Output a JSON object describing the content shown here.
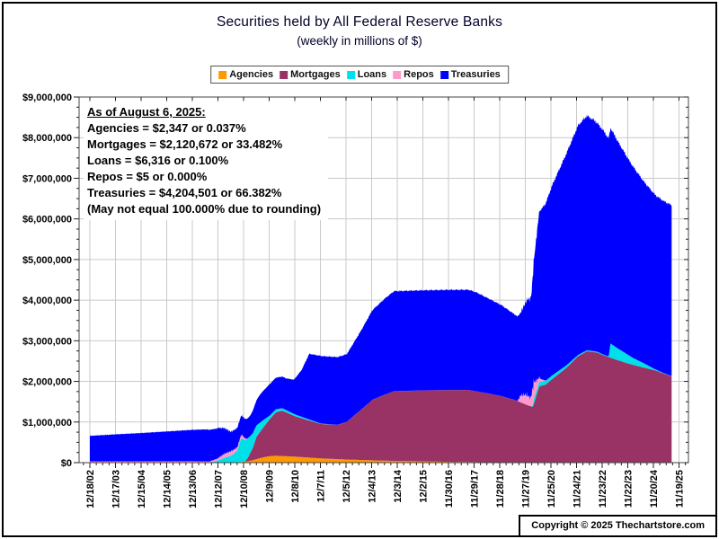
{
  "header": {
    "title": "Securities held by All Federal Reserve Banks",
    "subtitle": "(weekly in millions of $)"
  },
  "annotation": {
    "title": "As of August 6, 2025:",
    "lines": [
      "Agencies = $2,347 or 0.037%",
      "Mortgages = $2,120,672 or 33.482%",
      "Loans = $6,316 or 0.100%",
      "Repos = $5 or 0.000%",
      "Treasuries = $4,204,501 or 66.382%",
      "(May not equal 100.000% due to rounding)"
    ]
  },
  "footer": {
    "copyright": "Copyright © 2025 Thechartstore.com"
  },
  "chart_data": {
    "type": "area",
    "stacked": true,
    "title": "Securities held by All Federal Reserve Banks",
    "subtitle": "(weekly in millions of $)",
    "units": "millions of $",
    "frequency": "weekly",
    "legend_position": "top-center",
    "grid": true,
    "ylim": [
      0,
      9000000
    ],
    "y_tick_interval": 1000000,
    "y_ticks": [
      "$0",
      "$1,000,000",
      "$2,000,000",
      "$3,000,000",
      "$4,000,000",
      "$5,000,000",
      "$6,000,000",
      "$7,000,000",
      "$8,000,000",
      "$9,000,000"
    ],
    "x_ticks": [
      "12/18/02",
      "12/17/03",
      "12/15/04",
      "12/14/05",
      "12/13/06",
      "12/12/07",
      "12/10/08",
      "12/9/09",
      "12/8/10",
      "12/7/11",
      "12/5/12",
      "12/4/13",
      "12/3/14",
      "12/2/15",
      "11/30/16",
      "11/29/17",
      "11/28/18",
      "11/27/19",
      "11/25/20",
      "11/24/21",
      "11/23/22",
      "11/22/23",
      "11/20/24",
      "11/19/25"
    ],
    "x_start_year_value": 2002.963,
    "x_tick_interval_years": 0.99661,
    "data_end_year_value": 2025.6,
    "as_of": {
      "date": "August 6, 2025",
      "Agencies": 2347,
      "Mortgages": 2120672,
      "Loans": 6316,
      "Repos": 5,
      "Treasuries": 4204501,
      "pct": {
        "Agencies": 0.037,
        "Mortgages": 33.482,
        "Loans": 0.1,
        "Repos": 0.0,
        "Treasuries": 66.382
      }
    },
    "colors": {
      "grid": "#c9c9c9",
      "plot_border": "#444444",
      "tick": "#222222",
      "title_text": "#000028"
    },
    "series": [
      {
        "name": "Agencies",
        "color": "#FF9900",
        "keypoints": [
          [
            2002.963,
            0
          ],
          [
            2008.6,
            0
          ],
          [
            2008.75,
            14000
          ],
          [
            2008.96,
            20000
          ],
          [
            2009.3,
            60000
          ],
          [
            2009.7,
            130000
          ],
          [
            2009.96,
            160000
          ],
          [
            2010.2,
            169000
          ],
          [
            2010.96,
            147000
          ],
          [
            2011.96,
            104000
          ],
          [
            2012.96,
            76000
          ],
          [
            2013.96,
            57000
          ],
          [
            2014.96,
            39000
          ],
          [
            2015.96,
            32000
          ],
          [
            2016.96,
            19000
          ],
          [
            2017.96,
            13000
          ],
          [
            2018.96,
            2400
          ],
          [
            2025.6,
            2347
          ]
        ]
      },
      {
        "name": "Mortgages",
        "color": "#993366",
        "keypoints": [
          [
            2002.963,
            0
          ],
          [
            2008.99,
            0
          ],
          [
            2009.1,
            70000
          ],
          [
            2009.3,
            300000
          ],
          [
            2009.45,
            553000
          ],
          [
            2009.96,
            908000
          ],
          [
            2010.2,
            1070000
          ],
          [
            2010.45,
            1118000
          ],
          [
            2010.96,
            992000
          ],
          [
            2011.45,
            920000
          ],
          [
            2011.96,
            848000
          ],
          [
            2012.6,
            845000
          ],
          [
            2012.96,
            927000
          ],
          [
            2013.45,
            1200000
          ],
          [
            2013.96,
            1490000
          ],
          [
            2014.45,
            1630000
          ],
          [
            2014.8,
            1717000
          ],
          [
            2015.96,
            1747000
          ],
          [
            2016.96,
            1770000
          ],
          [
            2017.7,
            1775000
          ],
          [
            2018.96,
            1640000
          ],
          [
            2019.5,
            1540000
          ],
          [
            2019.96,
            1420000
          ],
          [
            2020.2,
            1370000
          ],
          [
            2020.45,
            1880000
          ],
          [
            2020.7,
            1920000
          ],
          [
            2020.96,
            2060000
          ],
          [
            2021.5,
            2330000
          ],
          [
            2021.96,
            2620000
          ],
          [
            2022.3,
            2740000
          ],
          [
            2022.7,
            2710000
          ],
          [
            2022.96,
            2640000
          ],
          [
            2023.5,
            2520000
          ],
          [
            2023.96,
            2430000
          ],
          [
            2024.5,
            2340000
          ],
          [
            2024.96,
            2270000
          ],
          [
            2025.6,
            2120672
          ]
        ]
      },
      {
        "name": "Loans",
        "color": "#00E0E8",
        "keypoints": [
          [
            2002.963,
            200
          ],
          [
            2007.6,
            300
          ],
          [
            2007.9,
            45000
          ],
          [
            2008.2,
            120000
          ],
          [
            2008.45,
            170000
          ],
          [
            2008.7,
            290000
          ],
          [
            2008.85,
            590000
          ],
          [
            2008.96,
            550000
          ],
          [
            2009.2,
            420000
          ],
          [
            2009.45,
            280000
          ],
          [
            2009.96,
            90000
          ],
          [
            2010.45,
            60000
          ],
          [
            2010.96,
            45000
          ],
          [
            2011.96,
            10000
          ],
          [
            2012.5,
            2000
          ],
          [
            2019.96,
            100
          ],
          [
            2020.15,
            2000
          ],
          [
            2020.25,
            130000
          ],
          [
            2020.5,
            100000
          ],
          [
            2020.96,
            90000
          ],
          [
            2021.5,
            60000
          ],
          [
            2021.96,
            30000
          ],
          [
            2022.96,
            15000
          ],
          [
            2023.15,
            15000
          ],
          [
            2023.22,
            350000
          ],
          [
            2023.5,
            290000
          ],
          [
            2023.96,
            200000
          ],
          [
            2024.1,
            167000
          ],
          [
            2024.5,
            110000
          ],
          [
            2024.96,
            25000
          ],
          [
            2025.3,
            10000
          ],
          [
            2025.6,
            6316
          ]
        ]
      },
      {
        "name": "Repos",
        "color": "#FF99CC",
        "keypoints": [
          [
            2002.963,
            30000
          ],
          [
            2006.96,
            32000
          ],
          [
            2007.6,
            28000
          ],
          [
            2007.9,
            46000
          ],
          [
            2008.2,
            100000
          ],
          [
            2008.45,
            110000
          ],
          [
            2008.7,
            80000
          ],
          [
            2008.9,
            80000
          ],
          [
            2009.05,
            20000
          ],
          [
            2009.2,
            0
          ],
          [
            2019.6,
            0
          ],
          [
            2019.73,
            180000
          ],
          [
            2019.96,
            250000
          ],
          [
            2020.1,
            190000
          ],
          [
            2020.22,
            440000
          ],
          [
            2020.35,
            220000
          ],
          [
            2020.5,
            70000
          ],
          [
            2020.7,
            0
          ],
          [
            2025.6,
            5
          ]
        ]
      },
      {
        "name": "Treasuries",
        "color": "#0000FF",
        "keypoints": [
          [
            2002.963,
            629000
          ],
          [
            2003.96,
            666000
          ],
          [
            2004.96,
            698000
          ],
          [
            2005.96,
            736000
          ],
          [
            2006.96,
            775000
          ],
          [
            2007.5,
            790000
          ],
          [
            2007.96,
            740000
          ],
          [
            2008.2,
            630000
          ],
          [
            2008.45,
            479000
          ],
          [
            2008.96,
            475000
          ],
          [
            2009.2,
            505000
          ],
          [
            2009.6,
            695000
          ],
          [
            2009.96,
            776000
          ],
          [
            2010.6,
            779000
          ],
          [
            2010.9,
            840000
          ],
          [
            2011.2,
            1150000
          ],
          [
            2011.5,
            1616000
          ],
          [
            2011.96,
            1663000
          ],
          [
            2012.96,
            1666000
          ],
          [
            2013.5,
            1940000
          ],
          [
            2013.96,
            2208000
          ],
          [
            2014.5,
            2380000
          ],
          [
            2014.8,
            2461000
          ],
          [
            2016.96,
            2464000
          ],
          [
            2017.7,
            2465000
          ],
          [
            2018.0,
            2436000
          ],
          [
            2018.96,
            2240000
          ],
          [
            2019.55,
            2090000
          ],
          [
            2019.73,
            2040000
          ],
          [
            2019.96,
            2330000
          ],
          [
            2020.15,
            2500000
          ],
          [
            2020.3,
            3340000
          ],
          [
            2020.45,
            4100000
          ],
          [
            2020.7,
            4365000
          ],
          [
            2020.96,
            4690000
          ],
          [
            2021.5,
            5210000
          ],
          [
            2021.96,
            5650000
          ],
          [
            2022.3,
            5770000
          ],
          [
            2022.6,
            5680000
          ],
          [
            2022.96,
            5500000
          ],
          [
            2023.5,
            5100000
          ],
          [
            2023.96,
            4790000
          ],
          [
            2024.5,
            4480000
          ],
          [
            2024.96,
            4290000
          ],
          [
            2025.3,
            4230000
          ],
          [
            2025.6,
            4204501
          ]
        ]
      }
    ]
  }
}
